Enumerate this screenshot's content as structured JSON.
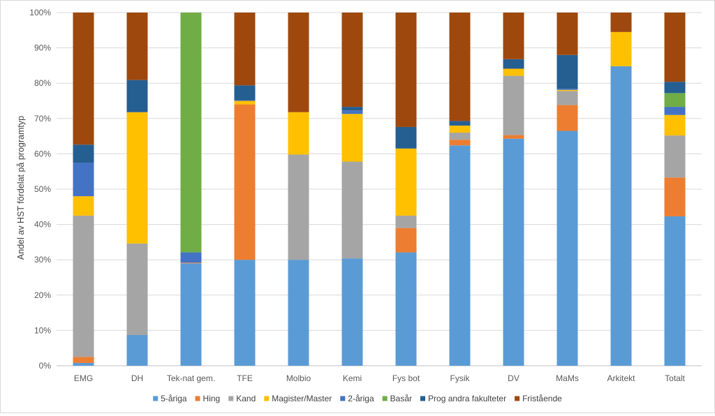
{
  "chart_data": {
    "type": "bar",
    "stacked": true,
    "title": "",
    "xlabel": "",
    "ylabel": "Andel av HST fördelat på programtyp",
    "ylim": [
      0,
      100
    ],
    "y_ticks": [
      "0%",
      "10%",
      "20%",
      "30%",
      "40%",
      "50%",
      "60%",
      "70%",
      "80%",
      "90%",
      "100%"
    ],
    "grid": true,
    "legend_position": "bottom",
    "categories": [
      "EMG",
      "DH",
      "Tek-nat gem.",
      "TFE",
      "Molbio",
      "Kemi",
      "Fys bot",
      "Fysik",
      "DV",
      "MaMs",
      "Arkitekt",
      "Totalt"
    ],
    "series": [
      {
        "name": "5-åriga",
        "color": "#5b9bd5",
        "values": [
          0.8,
          8.7,
          29.0,
          30.0,
          30.0,
          30.4,
          32.1,
          62.4,
          64.3,
          66.5,
          84.8,
          42.3
        ]
      },
      {
        "name": "Hing",
        "color": "#ed7d31",
        "values": [
          1.7,
          0.0,
          0.2,
          44.0,
          0.0,
          0.0,
          6.9,
          1.6,
          1.0,
          7.3,
          0.0,
          11.0
        ]
      },
      {
        "name": "Kand",
        "color": "#a5a5a5",
        "values": [
          40.0,
          25.9,
          0.0,
          0.0,
          29.8,
          27.4,
          3.5,
          2.0,
          16.8,
          4.0,
          0.0,
          11.9
        ]
      },
      {
        "name": "Magister/Master",
        "color": "#ffc000",
        "values": [
          5.5,
          37.2,
          0.0,
          1.0,
          12.0,
          13.5,
          19.0,
          2.0,
          2.0,
          0.3,
          9.7,
          5.8
        ]
      },
      {
        "name": "2-åriga",
        "color": "#4472c4",
        "values": [
          9.5,
          0.0,
          2.9,
          0.2,
          0.0,
          1.0,
          0.0,
          0.0,
          0.0,
          0.3,
          0.0,
          2.3
        ]
      },
      {
        "name": "Basår",
        "color": "#70ad47",
        "values": [
          0.0,
          0.0,
          67.9,
          0.0,
          0.0,
          0.0,
          0.0,
          0.0,
          0.0,
          0.0,
          0.0,
          3.9
        ]
      },
      {
        "name": "Prog andra fakulteter",
        "color": "#255e91",
        "values": [
          5.1,
          9.1,
          0.0,
          4.2,
          0.0,
          1.0,
          6.1,
          1.3,
          2.7,
          9.6,
          0.0,
          3.2
        ]
      },
      {
        "name": "Fristående",
        "color": "#9e480e",
        "values": [
          37.4,
          19.1,
          0.0,
          20.6,
          28.2,
          26.7,
          32.4,
          30.7,
          13.2,
          12.0,
          5.5,
          19.6
        ]
      }
    ]
  }
}
